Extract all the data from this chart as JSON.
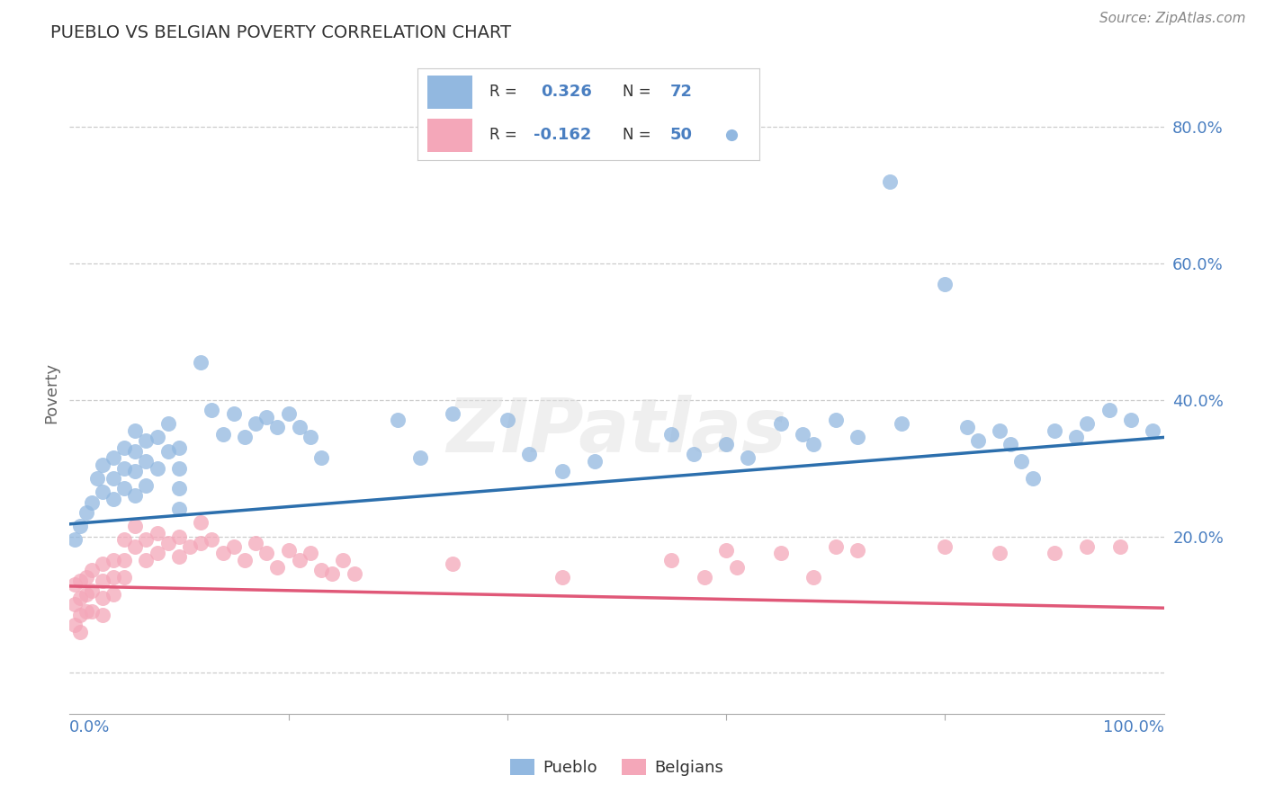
{
  "title": "PUEBLO VS BELGIAN POVERTY CORRELATION CHART",
  "source": "Source: ZipAtlas.com",
  "ylabel": "Poverty",
  "xlim": [
    0.0,
    1.0
  ],
  "ylim": [
    -0.06,
    0.88
  ],
  "y_ticks": [
    0.0,
    0.2,
    0.4,
    0.6,
    0.8
  ],
  "y_tick_labels": [
    "",
    "20.0%",
    "40.0%",
    "60.0%",
    "80.0%"
  ],
  "pueblo_color": "#92b8e0",
  "belgian_color": "#f4a7b9",
  "pueblo_line_color": "#2c6fad",
  "belgian_line_color": "#e05878",
  "pueblo_line_x0": 0.0,
  "pueblo_line_y0": 0.218,
  "pueblo_line_x1": 1.0,
  "pueblo_line_y1": 0.345,
  "belgian_line_x0": 0.0,
  "belgian_line_y0": 0.127,
  "belgian_line_x1": 1.0,
  "belgian_line_y1": 0.095,
  "legend_pueblo_r": "0.326",
  "legend_pueblo_n": "72",
  "legend_belgian_r": "-0.162",
  "legend_belgian_n": "50",
  "pueblo_scatter_x": [
    0.005,
    0.01,
    0.015,
    0.02,
    0.025,
    0.03,
    0.03,
    0.04,
    0.04,
    0.04,
    0.05,
    0.05,
    0.05,
    0.06,
    0.06,
    0.06,
    0.06,
    0.07,
    0.07,
    0.07,
    0.08,
    0.08,
    0.09,
    0.09,
    0.1,
    0.1,
    0.1,
    0.1,
    0.12,
    0.13,
    0.14,
    0.15,
    0.16,
    0.17,
    0.18,
    0.19,
    0.2,
    0.21,
    0.22,
    0.23,
    0.3,
    0.32,
    0.35,
    0.4,
    0.42,
    0.45,
    0.48,
    0.55,
    0.57,
    0.6,
    0.62,
    0.65,
    0.67,
    0.68,
    0.7,
    0.72,
    0.75,
    0.76,
    0.8,
    0.82,
    0.83,
    0.85,
    0.86,
    0.87,
    0.88,
    0.9,
    0.92,
    0.93,
    0.95,
    0.97,
    0.99
  ],
  "pueblo_scatter_y": [
    0.195,
    0.215,
    0.235,
    0.25,
    0.285,
    0.305,
    0.265,
    0.315,
    0.285,
    0.255,
    0.33,
    0.3,
    0.27,
    0.355,
    0.325,
    0.295,
    0.26,
    0.34,
    0.31,
    0.275,
    0.345,
    0.3,
    0.365,
    0.325,
    0.33,
    0.3,
    0.27,
    0.24,
    0.455,
    0.385,
    0.35,
    0.38,
    0.345,
    0.365,
    0.375,
    0.36,
    0.38,
    0.36,
    0.345,
    0.315,
    0.37,
    0.315,
    0.38,
    0.37,
    0.32,
    0.295,
    0.31,
    0.35,
    0.32,
    0.335,
    0.315,
    0.365,
    0.35,
    0.335,
    0.37,
    0.345,
    0.72,
    0.365,
    0.57,
    0.36,
    0.34,
    0.355,
    0.335,
    0.31,
    0.285,
    0.355,
    0.345,
    0.365,
    0.385,
    0.37,
    0.355
  ],
  "belgian_scatter_x": [
    0.005,
    0.005,
    0.005,
    0.01,
    0.01,
    0.01,
    0.01,
    0.015,
    0.015,
    0.015,
    0.02,
    0.02,
    0.02,
    0.03,
    0.03,
    0.03,
    0.03,
    0.04,
    0.04,
    0.04,
    0.05,
    0.05,
    0.05,
    0.06,
    0.06,
    0.07,
    0.07,
    0.08,
    0.08,
    0.09,
    0.1,
    0.1,
    0.11,
    0.12,
    0.12,
    0.13,
    0.14,
    0.15,
    0.16,
    0.17,
    0.18,
    0.19,
    0.2,
    0.21,
    0.22,
    0.23,
    0.24,
    0.25,
    0.26,
    0.35,
    0.45,
    0.55,
    0.58,
    0.6,
    0.61,
    0.65,
    0.68,
    0.7,
    0.72,
    0.8,
    0.85,
    0.9,
    0.93,
    0.96
  ],
  "belgian_scatter_y": [
    0.13,
    0.1,
    0.07,
    0.135,
    0.11,
    0.085,
    0.06,
    0.14,
    0.115,
    0.09,
    0.15,
    0.12,
    0.09,
    0.16,
    0.135,
    0.11,
    0.085,
    0.165,
    0.14,
    0.115,
    0.195,
    0.165,
    0.14,
    0.215,
    0.185,
    0.195,
    0.165,
    0.205,
    0.175,
    0.19,
    0.2,
    0.17,
    0.185,
    0.22,
    0.19,
    0.195,
    0.175,
    0.185,
    0.165,
    0.19,
    0.175,
    0.155,
    0.18,
    0.165,
    0.175,
    0.15,
    0.145,
    0.165,
    0.145,
    0.16,
    0.14,
    0.165,
    0.14,
    0.18,
    0.155,
    0.175,
    0.14,
    0.185,
    0.18,
    0.185,
    0.175,
    0.175,
    0.185,
    0.185
  ]
}
